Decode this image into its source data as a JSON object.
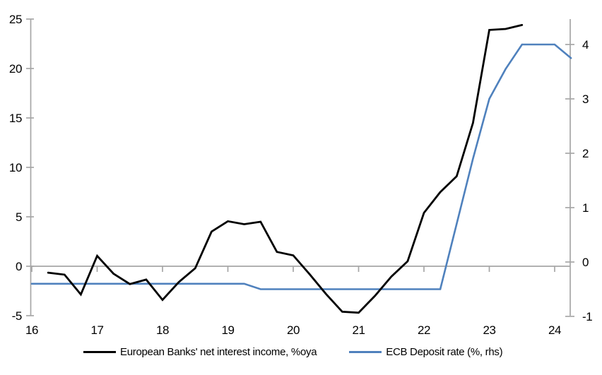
{
  "chart_data": {
    "type": "line",
    "title": "",
    "x_axis": {
      "tick_labels": [
        "16",
        "17",
        "18",
        "19",
        "20",
        "21",
        "22",
        "23",
        "24"
      ],
      "tick_values": [
        16,
        17,
        18,
        19,
        20,
        21,
        22,
        23,
        24
      ],
      "range": [
        15.98,
        24.3
      ]
    },
    "y_axis_left": {
      "tick_values": [
        -5,
        0,
        5,
        10,
        15,
        20,
        25
      ],
      "range": [
        -5,
        25
      ]
    },
    "y_axis_right": {
      "tick_values": [
        -1,
        0,
        1,
        2,
        3,
        4
      ],
      "range": [
        -1,
        4.45
      ]
    },
    "grid": "zero-line-only",
    "legend_position": "bottom",
    "colors": {
      "axis": "#A6A6A6",
      "text": "#000000",
      "black_line": "#000000",
      "blue_line": "#4F81BD"
    },
    "series": [
      {
        "name": "European Banks' net interest income, %oya",
        "color": "#000000",
        "axis": "left",
        "x": [
          16.25,
          16.5,
          16.75,
          17.0,
          17.25,
          17.5,
          17.75,
          18.0,
          18.25,
          18.5,
          18.75,
          19.0,
          19.25,
          19.5,
          19.75,
          20.0,
          20.25,
          20.5,
          20.75,
          21.0,
          21.25,
          21.5,
          21.75,
          22.0,
          22.25,
          22.5,
          22.75,
          23.0,
          23.25,
          23.5
        ],
        "values": [
          -0.65,
          -0.85,
          -2.85,
          1.05,
          -0.75,
          -1.8,
          -1.35,
          -3.4,
          -1.6,
          -0.2,
          3.5,
          4.55,
          4.25,
          4.5,
          1.45,
          1.1,
          -0.8,
          -2.8,
          -4.6,
          -4.7,
          -3.0,
          -1.05,
          0.5,
          5.4,
          7.5,
          9.1,
          14.5,
          23.9,
          24.0,
          24.4
        ]
      },
      {
        "name": "ECB Deposit rate (%, rhs)",
        "color": "#4F81BD",
        "axis": "right",
        "x": [
          16.0,
          16.25,
          16.5,
          16.75,
          17.0,
          17.25,
          17.5,
          17.75,
          18.0,
          18.25,
          18.5,
          18.75,
          19.0,
          19.25,
          19.5,
          19.75,
          20.0,
          20.25,
          20.5,
          20.75,
          21.0,
          21.25,
          21.5,
          21.75,
          22.0,
          22.25,
          22.5,
          22.75,
          23.0,
          23.25,
          23.5,
          23.75,
          24.0,
          24.25
        ],
        "values": [
          -0.4,
          -0.4,
          -0.4,
          -0.4,
          -0.4,
          -0.4,
          -0.4,
          -0.4,
          -0.4,
          -0.4,
          -0.4,
          -0.4,
          -0.4,
          -0.4,
          -0.5,
          -0.5,
          -0.5,
          -0.5,
          -0.5,
          -0.5,
          -0.5,
          -0.5,
          -0.5,
          -0.5,
          -0.5,
          -0.5,
          0.7,
          1.9,
          3.0,
          3.55,
          4.0,
          4.0,
          4.0,
          3.75
        ]
      }
    ]
  }
}
